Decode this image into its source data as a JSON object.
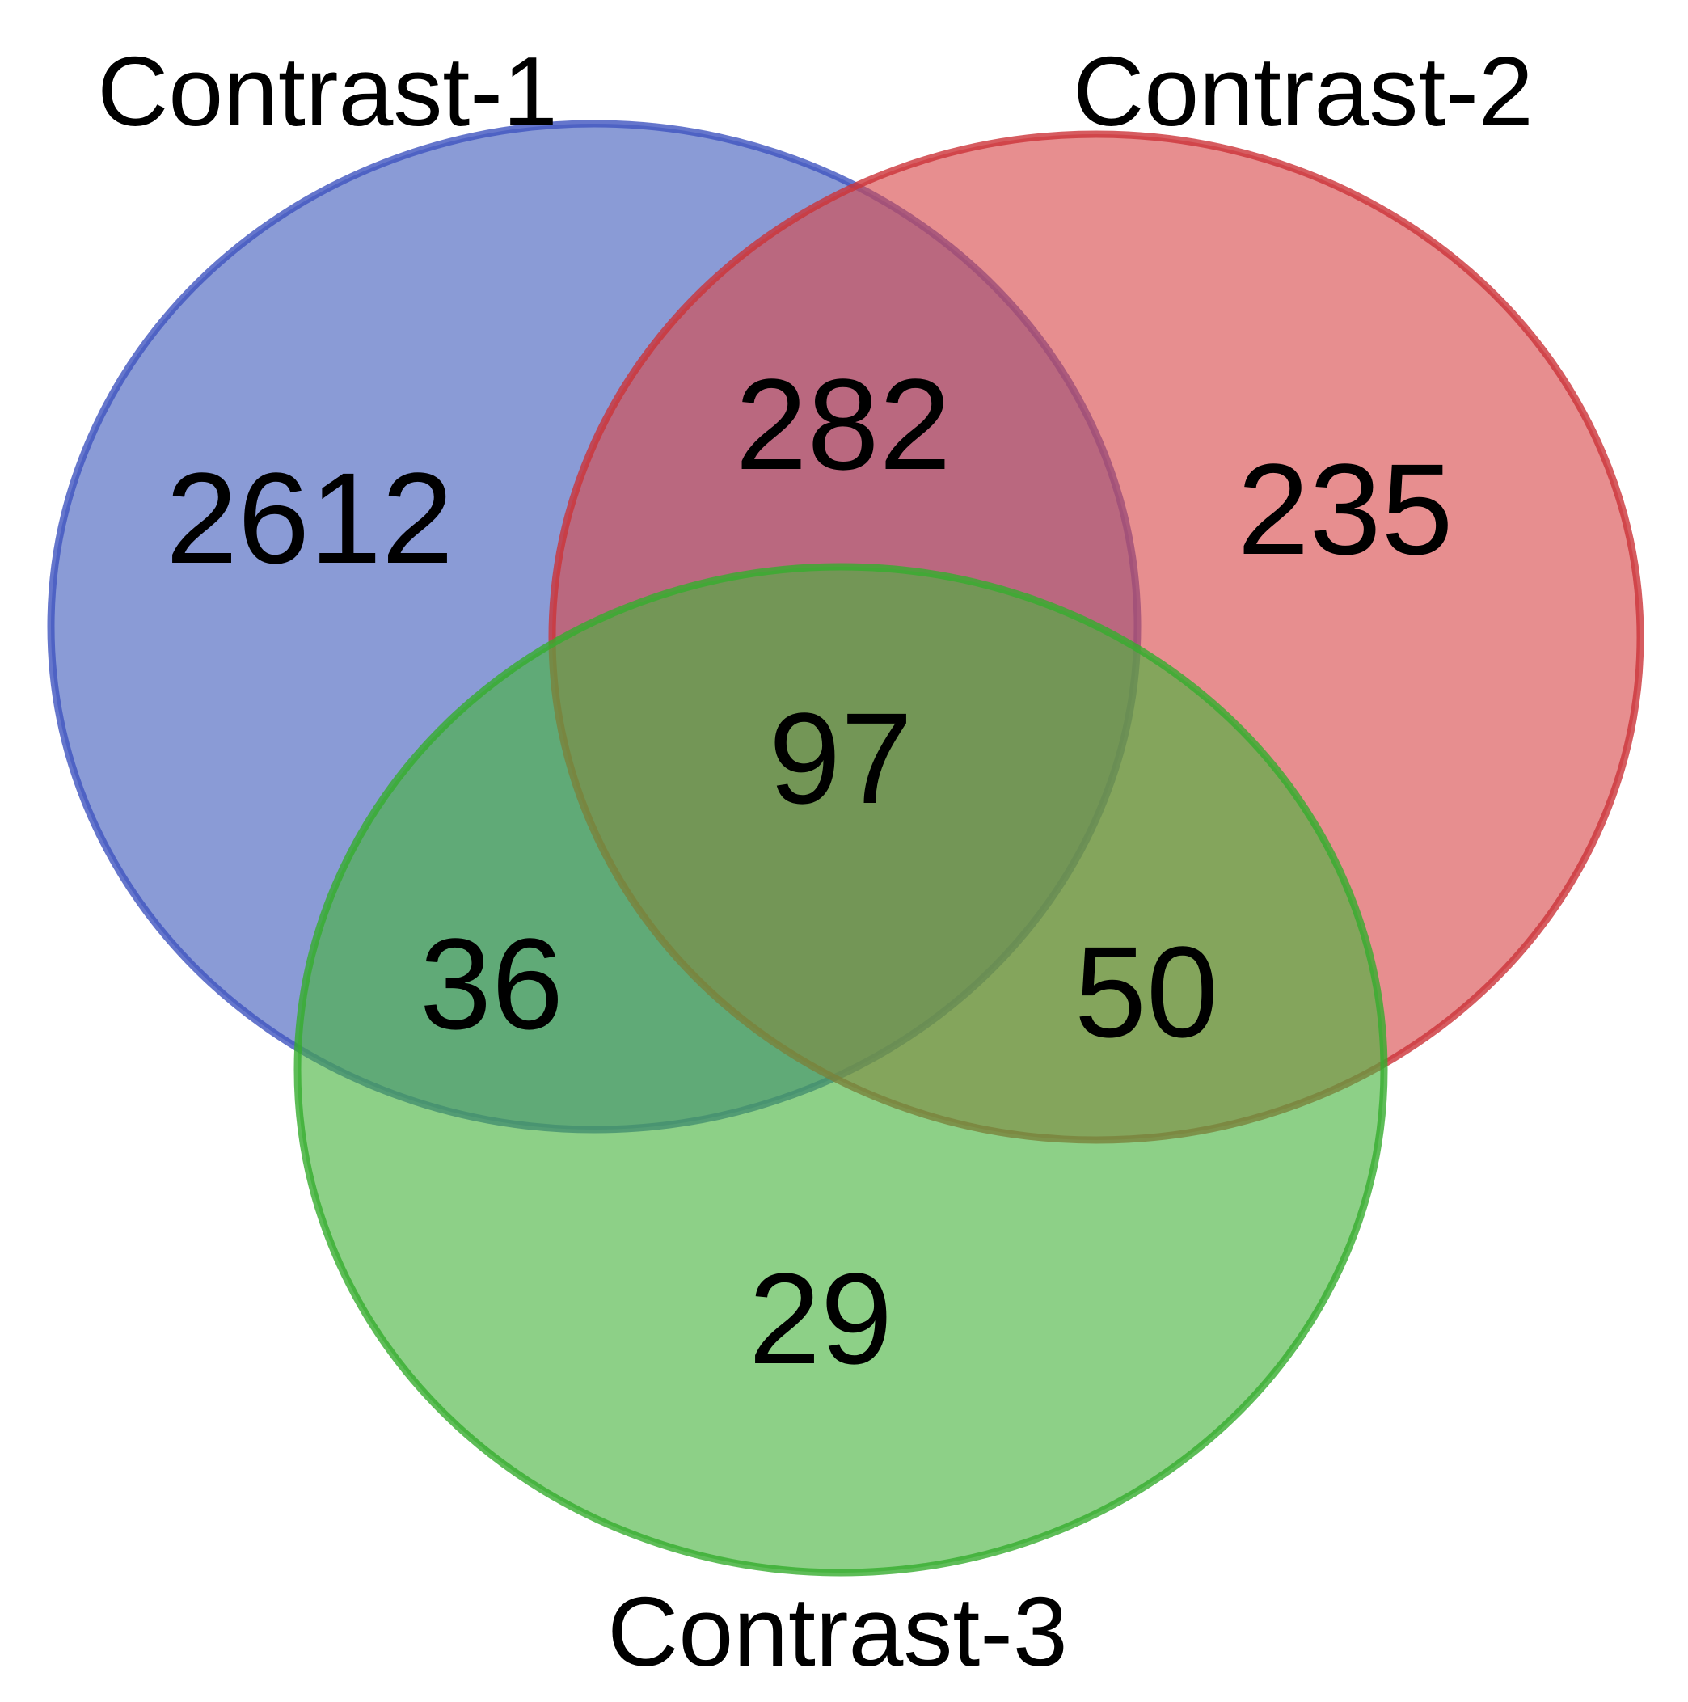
{
  "diagram": {
    "type": "venn",
    "sets": [
      {
        "key": "c1",
        "name": "Contrast-1",
        "color": "#5970c4",
        "stroke": "#3e54bf"
      },
      {
        "key": "c2",
        "name": "Contrast-2",
        "color": "#d9484a",
        "stroke": "#cc3338"
      },
      {
        "key": "c3",
        "name": "Contrast-3",
        "color": "#47b33d",
        "stroke": "#36ad2e"
      }
    ],
    "regions": {
      "c1_only": "2612",
      "c2_only": "235",
      "c3_only": "29",
      "c1_c2": "282",
      "c1_c3": "36",
      "c2_c3": "50",
      "c1_c2_c3": "97"
    }
  }
}
